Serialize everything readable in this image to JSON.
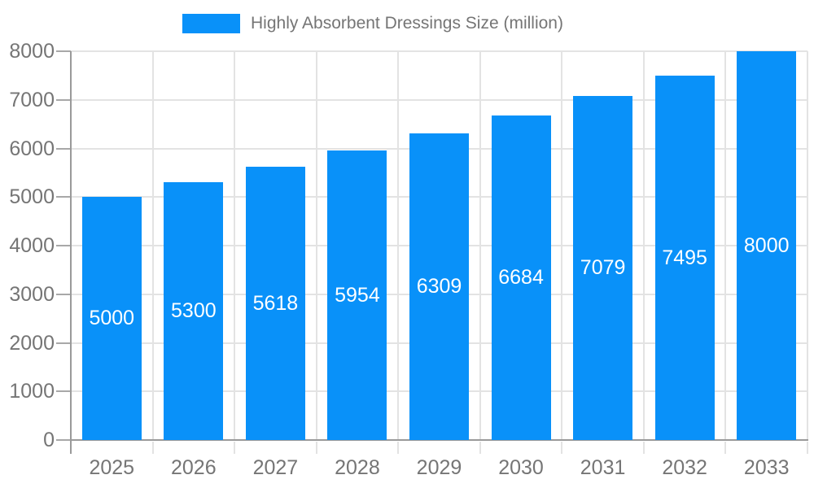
{
  "chart_data": {
    "type": "bar",
    "title": "",
    "categories": [
      "2025",
      "2026",
      "2027",
      "2028",
      "2029",
      "2030",
      "2031",
      "2032",
      "2033"
    ],
    "series": [
      {
        "name": "Highly Absorbent Dressings Size (million)",
        "values": [
          5000,
          5300,
          5618,
          5954,
          6309,
          6684,
          7079,
          7495,
          8000
        ]
      }
    ],
    "xlabel": "",
    "ylabel": "",
    "ylim": [
      0,
      8000
    ],
    "y_ticks": [
      0,
      1000,
      2000,
      3000,
      4000,
      5000,
      6000,
      7000,
      8000
    ],
    "grid": true,
    "legend_position": "top-center",
    "bar_labels_visible": true,
    "colors": {
      "bar": "#0991f9",
      "bar_value_label": "#ffffff",
      "gridline": "#e3e3e3",
      "axis_line": "#9a9a9a",
      "axis_tick": "#a8a8a8",
      "axis_label_text": "#757575",
      "legend_text": "#757575",
      "background": "#ffffff"
    }
  }
}
